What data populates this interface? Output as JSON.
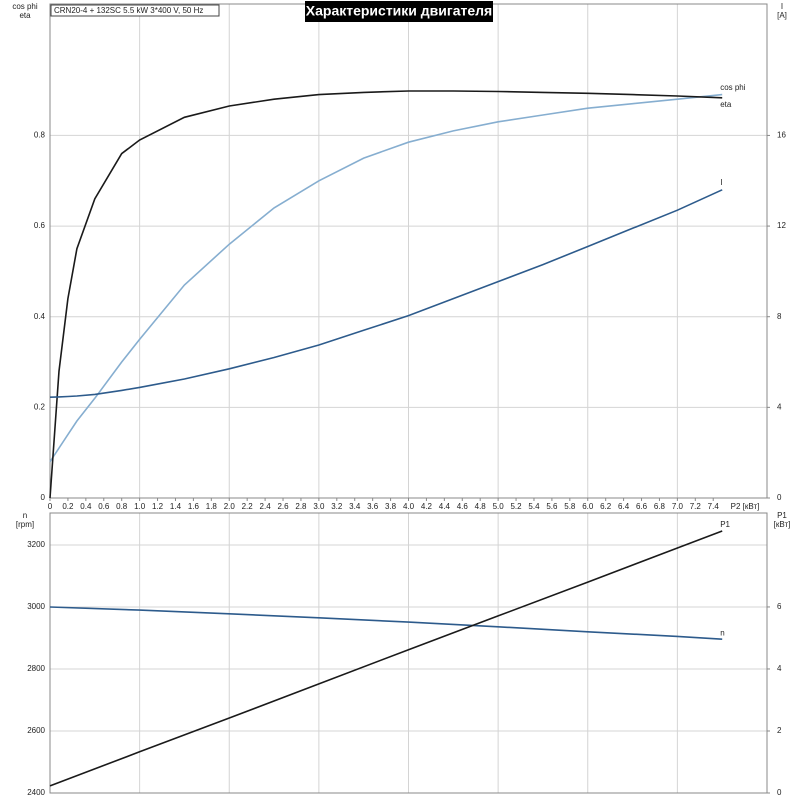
{
  "chart_data": [
    {
      "type": "line",
      "title": "Характеристики двигателя",
      "subtitle": "CRN20-4 + 132SC  5.5 kW  3*400 V, 50 Hz",
      "ylabel": [
        "cos phi",
        "eta"
      ],
      "y2label": [
        "I",
        "[A]"
      ],
      "xlabel": "P2 [кВт]",
      "xlim": [
        0,
        8.0
      ],
      "xticks": [
        0,
        0.2,
        0.4,
        0.6,
        0.8,
        {
          "value": 1.0,
          "label": "1.0"
        },
        1.2,
        1.4,
        1.6,
        1.8,
        {
          "value": 2.0,
          "label": "2.0"
        },
        2.2,
        2.4,
        2.6,
        2.8,
        {
          "value": 3.0,
          "label": "3.0"
        },
        3.2,
        3.4,
        3.6,
        3.8,
        {
          "value": 4.0,
          "label": "4.0"
        },
        4.2,
        4.4,
        4.6,
        4.8,
        {
          "value": 5.0,
          "label": "5.0"
        },
        5.2,
        5.4,
        5.6,
        5.8,
        {
          "value": 6.0,
          "label": "6.0"
        },
        6.2,
        6.4,
        6.6,
        6.8,
        {
          "value": 7.0,
          "label": "7.0"
        },
        7.2,
        7.4
      ],
      "ylim": [
        0,
        1.09
      ],
      "yticks": [
        0,
        0.2,
        0.4,
        0.6,
        0.8
      ],
      "y2lim": [
        0,
        21.8
      ],
      "y2ticks": [
        0,
        4,
        8,
        12,
        16
      ],
      "x": [
        0,
        0.1,
        0.2,
        0.3,
        0.5,
        0.8,
        1.0,
        1.5,
        2.0,
        2.5,
        3.0,
        3.5,
        4.0,
        4.5,
        5.0,
        5.5,
        6.0,
        6.5,
        7.0,
        7.5
      ],
      "series": [
        {
          "name": "cos phi",
          "color": "#86aed0",
          "values": [
            0.08,
            0.11,
            0.14,
            0.17,
            0.22,
            0.3,
            0.35,
            0.47,
            0.56,
            0.64,
            0.7,
            0.75,
            0.785,
            0.81,
            0.83,
            0.845,
            0.86,
            0.87,
            0.88,
            0.89
          ]
        },
        {
          "name": "eta",
          "color": "#1a1a1a",
          "values": [
            0,
            0.28,
            0.44,
            0.55,
            0.66,
            0.76,
            0.79,
            0.84,
            0.865,
            0.88,
            0.89,
            0.895,
            0.898,
            0.898,
            0.897,
            0.895,
            0.893,
            0.89,
            0.887,
            0.883
          ]
        },
        {
          "name": "I",
          "color": "#2d5b8c",
          "axis": "y2",
          "values": [
            4.45,
            4.46,
            4.48,
            4.5,
            4.57,
            4.75,
            4.88,
            5.25,
            5.7,
            6.2,
            6.75,
            7.4,
            8.05,
            8.8,
            9.55,
            10.3,
            11.1,
            11.9,
            12.7,
            13.6
          ]
        }
      ]
    },
    {
      "type": "line",
      "ylabel": [
        "n",
        "[rpm]"
      ],
      "y2label": [
        "P1",
        "[кВт]"
      ],
      "xlim": [
        0,
        8.0
      ],
      "ylim": [
        2400,
        3303
      ],
      "yticks": [
        2400,
        2600,
        2800,
        3000,
        3200
      ],
      "y2lim": [
        0,
        9.03
      ],
      "y2ticks": [
        0,
        2,
        4,
        6
      ],
      "x": [
        0,
        1,
        2,
        3,
        4,
        5,
        6,
        7,
        7.5
      ],
      "series": [
        {
          "name": "n",
          "color": "#2d5b8c",
          "values": [
            3000,
            2990,
            2978,
            2965,
            2951,
            2936,
            2920,
            2905,
            2896
          ]
        },
        {
          "name": "P1",
          "color": "#1a1a1a",
          "axis": "y2",
          "values": [
            0.23,
            1.33,
            2.42,
            3.52,
            4.62,
            5.71,
            6.8,
            7.9,
            8.45
          ]
        }
      ]
    }
  ]
}
